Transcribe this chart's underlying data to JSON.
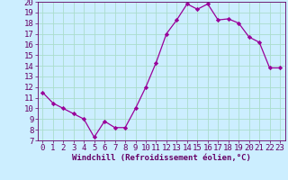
{
  "x": [
    0,
    1,
    2,
    3,
    4,
    5,
    6,
    7,
    8,
    9,
    10,
    11,
    12,
    13,
    14,
    15,
    16,
    17,
    18,
    19,
    20,
    21,
    22,
    23
  ],
  "y": [
    11.5,
    10.5,
    10.0,
    9.5,
    9.0,
    7.3,
    8.8,
    8.2,
    8.2,
    10.0,
    12.0,
    14.3,
    17.0,
    18.3,
    19.8,
    19.3,
    19.8,
    18.3,
    18.4,
    18.0,
    16.7,
    16.2,
    13.8,
    13.8
  ],
  "line_color": "#990099",
  "marker": "D",
  "marker_size": 2.2,
  "bg_color": "#cceeff",
  "grid_color": "#aaddcc",
  "xlabel": "Windchill (Refroidissement éolien,°C)",
  "xlabel_color": "#660066",
  "xlabel_fontsize": 6.5,
  "tick_fontsize": 6.5,
  "ylim": [
    7,
    20
  ],
  "xlim": [
    -0.5,
    23.5
  ],
  "yticks": [
    7,
    8,
    9,
    10,
    11,
    12,
    13,
    14,
    15,
    16,
    17,
    18,
    19,
    20
  ],
  "xticks": [
    0,
    1,
    2,
    3,
    4,
    5,
    6,
    7,
    8,
    9,
    10,
    11,
    12,
    13,
    14,
    15,
    16,
    17,
    18,
    19,
    20,
    21,
    22,
    23
  ]
}
